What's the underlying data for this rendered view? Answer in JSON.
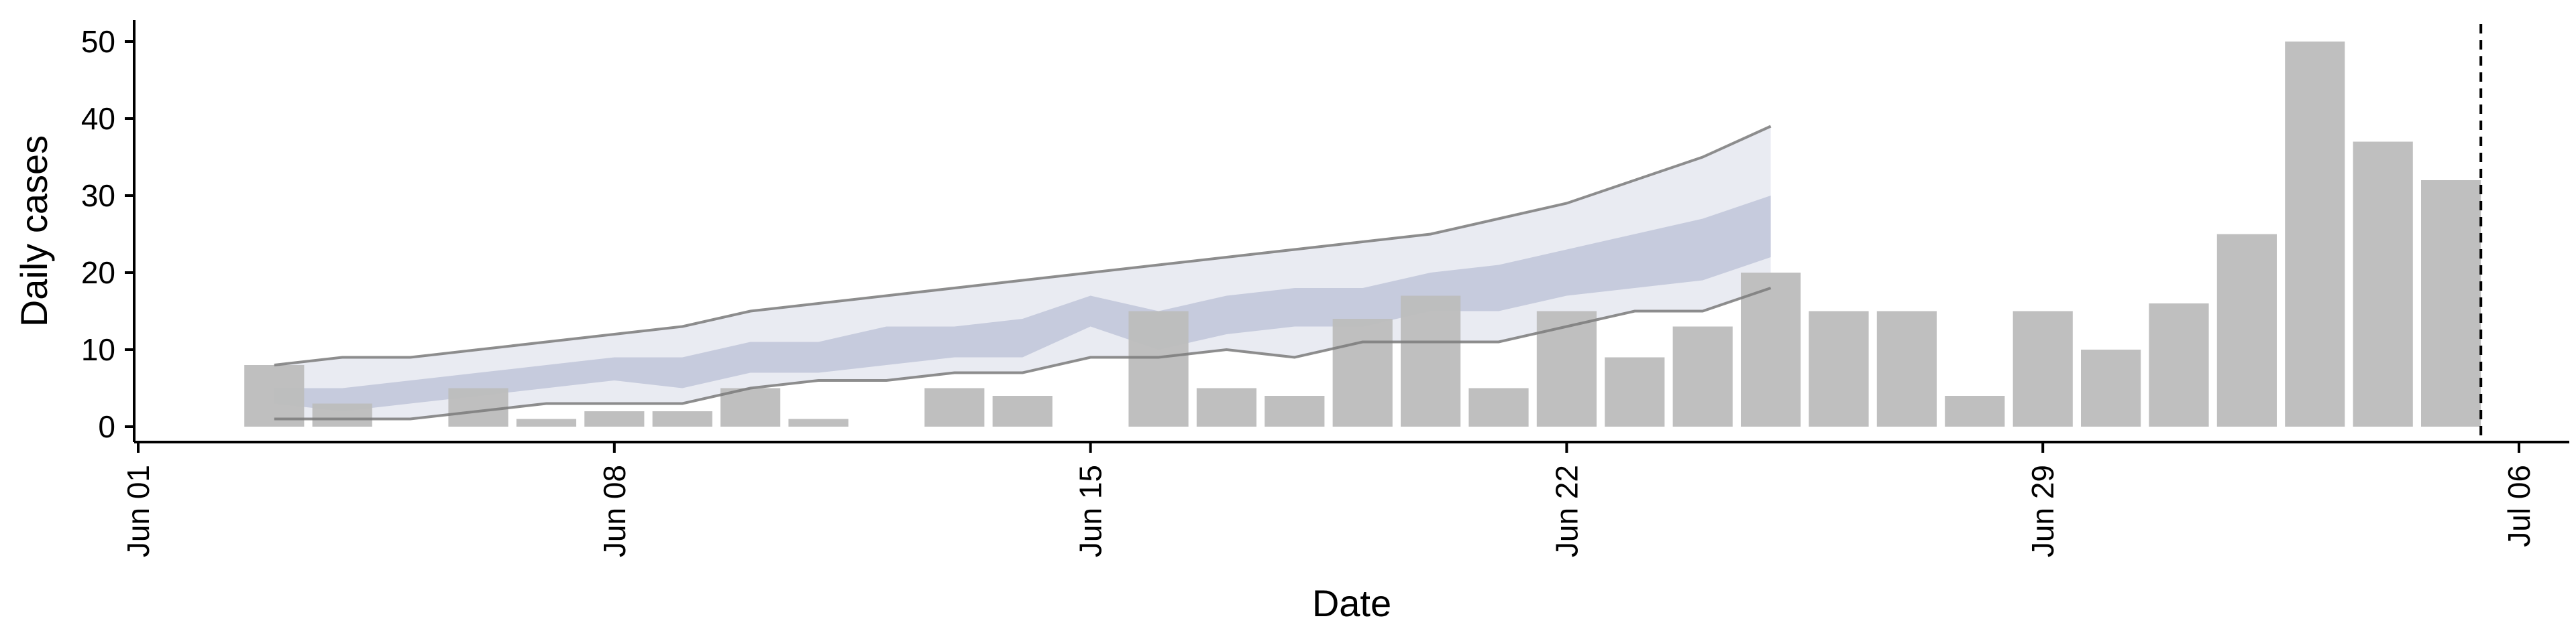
{
  "chart_data": {
    "type": "bar",
    "title": "",
    "xlabel": "Date",
    "ylabel": "Daily cases",
    "xlim": [
      "2020-06-01",
      "2020-07-07"
    ],
    "ylim": [
      0,
      52
    ],
    "x_ticks": [
      "Jun 01",
      "Jun 08",
      "Jun 15",
      "Jun 22",
      "Jun 29",
      "Jul 06"
    ],
    "y_ticks": [
      0,
      10,
      20,
      30,
      40,
      50
    ],
    "grid": false,
    "legend": "none",
    "colors": {
      "bars": "#bdbdbd",
      "band_outer": "#e9ebf2",
      "band_inner": "#c6cbdd",
      "bound_upper_line": "#7a7a7a",
      "bound_lower_line": "#7a7a7a",
      "reference_line": "#000000"
    },
    "reference_date": "2020-07-05",
    "series": [
      {
        "kind": "bar",
        "points": [
          {
            "date": "2020-06-03",
            "value": 8
          },
          {
            "date": "2020-06-04",
            "value": 3
          },
          {
            "date": "2020-06-06",
            "value": 5
          },
          {
            "date": "2020-06-07",
            "value": 1
          },
          {
            "date": "2020-06-08",
            "value": 2
          },
          {
            "date": "2020-06-09",
            "value": 2
          },
          {
            "date": "2020-06-10",
            "value": 5
          },
          {
            "date": "2020-06-11",
            "value": 1
          },
          {
            "date": "2020-06-13",
            "value": 5
          },
          {
            "date": "2020-06-14",
            "value": 4
          },
          {
            "date": "2020-06-16",
            "value": 15
          },
          {
            "date": "2020-06-17",
            "value": 5
          },
          {
            "date": "2020-06-18",
            "value": 4
          },
          {
            "date": "2020-06-19",
            "value": 14
          },
          {
            "date": "2020-06-20",
            "value": 17
          },
          {
            "date": "2020-06-21",
            "value": 5
          },
          {
            "date": "2020-06-22",
            "value": 15
          },
          {
            "date": "2020-06-23",
            "value": 9
          },
          {
            "date": "2020-06-24",
            "value": 13
          },
          {
            "date": "2020-06-25",
            "value": 20
          },
          {
            "date": "2020-06-26",
            "value": 15
          },
          {
            "date": "2020-06-27",
            "value": 15
          },
          {
            "date": "2020-06-28",
            "value": 4
          },
          {
            "date": "2020-06-29",
            "value": 15
          },
          {
            "date": "2020-06-30",
            "value": 10
          },
          {
            "date": "2020-07-01",
            "value": 16
          },
          {
            "date": "2020-07-02",
            "value": 25
          },
          {
            "date": "2020-07-03",
            "value": 50
          },
          {
            "date": "2020-07-04",
            "value": 37
          },
          {
            "date": "2020-07-05",
            "value": 32
          }
        ]
      },
      {
        "kind": "band_outer",
        "dates": [
          "2020-06-03",
          "2020-06-04",
          "2020-06-05",
          "2020-06-06",
          "2020-06-07",
          "2020-06-08",
          "2020-06-09",
          "2020-06-10",
          "2020-06-11",
          "2020-06-12",
          "2020-06-13",
          "2020-06-14",
          "2020-06-15",
          "2020-06-16",
          "2020-06-17",
          "2020-06-18",
          "2020-06-19",
          "2020-06-20",
          "2020-06-21",
          "2020-06-22",
          "2020-06-23",
          "2020-06-24",
          "2020-06-25"
        ],
        "lower": [
          1,
          1,
          1,
          2,
          3,
          3,
          3,
          5,
          6,
          6,
          7,
          7,
          9,
          9,
          10,
          9,
          11,
          11,
          11,
          13,
          15,
          15,
          18
        ],
        "upper": [
          8,
          9,
          9,
          10,
          11,
          12,
          13,
          15,
          16,
          17,
          18,
          19,
          20,
          21,
          22,
          23,
          24,
          25,
          27,
          29,
          32,
          35,
          39
        ]
      },
      {
        "kind": "band_inner",
        "dates": [
          "2020-06-03",
          "2020-06-04",
          "2020-06-05",
          "2020-06-06",
          "2020-06-07",
          "2020-06-08",
          "2020-06-09",
          "2020-06-10",
          "2020-06-11",
          "2020-06-12",
          "2020-06-13",
          "2020-06-14",
          "2020-06-15",
          "2020-06-16",
          "2020-06-17",
          "2020-06-18",
          "2020-06-19",
          "2020-06-20",
          "2020-06-21",
          "2020-06-22",
          "2020-06-23",
          "2020-06-24",
          "2020-06-25"
        ],
        "lower": [
          3,
          2,
          3,
          4,
          5,
          6,
          5,
          7,
          7,
          8,
          9,
          9,
          13,
          10,
          12,
          13,
          13,
          15,
          15,
          17,
          18,
          19,
          22
        ],
        "upper": [
          5,
          5,
          6,
          7,
          8,
          9,
          9,
          11,
          11,
          13,
          13,
          14,
          17,
          15,
          17,
          18,
          18,
          20,
          21,
          23,
          25,
          27,
          30
        ]
      }
    ]
  }
}
